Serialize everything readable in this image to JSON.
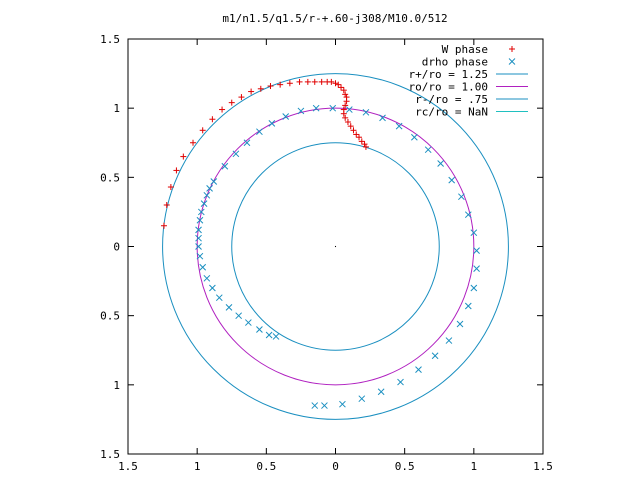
{
  "chart_data": {
    "type": "scatter",
    "title": "m1/n1.5/q1.5/r-+.60-j308/M10.0/512",
    "xlabel": "",
    "ylabel": "",
    "xlim": [
      -1.5,
      1.5
    ],
    "ylim": [
      -1.5,
      1.5
    ],
    "grid": false,
    "legend_position": "top-right",
    "x_ticks": [
      -1.5,
      -1,
      -0.5,
      0,
      0.5,
      1,
      1.5
    ],
    "x_tick_labels": [
      "1.5",
      "1",
      "0.5",
      "0",
      "0.5",
      "1",
      "1.5"
    ],
    "y_ticks": [
      1.5,
      1,
      0.5,
      0,
      -0.5,
      -1,
      -1.5
    ],
    "y_tick_labels": [
      "1.5",
      "1",
      "0.5",
      "0",
      "0.5",
      "1",
      "1.5"
    ],
    "circles": [
      {
        "name": "r+/ro = 1.25",
        "radius": 1.25,
        "color": "#1a8fc0"
      },
      {
        "name": "ro/ro = 1.00",
        "radius": 1.0,
        "color": "#b020c0"
      },
      {
        "name": "r-/ro = .75",
        "radius": 0.75,
        "color": "#1a8fc0"
      },
      {
        "name": "rc/ro = NaN",
        "radius": null,
        "color": "#20c0c0"
      }
    ],
    "series": [
      {
        "name": "W phase",
        "marker": "+",
        "color": "#e00000",
        "points": [
          [
            -1.24,
            0.15
          ],
          [
            -1.22,
            0.3
          ],
          [
            -1.19,
            0.43
          ],
          [
            -1.15,
            0.55
          ],
          [
            -1.1,
            0.65
          ],
          [
            -1.03,
            0.75
          ],
          [
            -0.96,
            0.84
          ],
          [
            -0.89,
            0.92
          ],
          [
            -0.82,
            0.99
          ],
          [
            -0.75,
            1.04
          ],
          [
            -0.68,
            1.08
          ],
          [
            -0.61,
            1.12
          ],
          [
            -0.54,
            1.14
          ],
          [
            -0.47,
            1.16
          ],
          [
            -0.4,
            1.17
          ],
          [
            -0.33,
            1.18
          ],
          [
            -0.26,
            1.19
          ],
          [
            -0.2,
            1.19
          ],
          [
            -0.15,
            1.19
          ],
          [
            -0.1,
            1.19
          ],
          [
            -0.06,
            1.19
          ],
          [
            -0.03,
            1.19
          ],
          [
            0.0,
            1.18
          ],
          [
            0.02,
            1.17
          ],
          [
            0.04,
            1.15
          ],
          [
            0.06,
            1.13
          ],
          [
            0.07,
            1.1
          ],
          [
            0.08,
            1.08
          ],
          [
            0.08,
            1.05
          ],
          [
            0.07,
            1.02
          ],
          [
            0.06,
            0.99
          ],
          [
            0.06,
            0.96
          ],
          [
            0.07,
            0.93
          ],
          [
            0.09,
            0.9
          ],
          [
            0.11,
            0.87
          ],
          [
            0.13,
            0.84
          ],
          [
            0.15,
            0.81
          ],
          [
            0.17,
            0.79
          ],
          [
            0.19,
            0.76
          ],
          [
            0.21,
            0.74
          ],
          [
            0.22,
            0.72
          ]
        ]
      },
      {
        "name": "drho phase",
        "marker": "x",
        "color": "#1a8fc0",
        "points": [
          [
            -0.88,
            0.47
          ],
          [
            -0.91,
            0.42
          ],
          [
            -0.93,
            0.37
          ],
          [
            -0.95,
            0.31
          ],
          [
            -0.97,
            0.25
          ],
          [
            -0.98,
            0.19
          ],
          [
            -0.99,
            0.12
          ],
          [
            -0.99,
            0.06
          ],
          [
            -0.99,
            0.0
          ],
          [
            -0.98,
            -0.07
          ],
          [
            -0.96,
            -0.15
          ],
          [
            -0.93,
            -0.23
          ],
          [
            -0.89,
            -0.3
          ],
          [
            -0.84,
            -0.37
          ],
          [
            -0.77,
            -0.44
          ],
          [
            -0.7,
            -0.5
          ],
          [
            -0.63,
            -0.55
          ],
          [
            -0.55,
            -0.6
          ],
          [
            -0.48,
            -0.64
          ],
          [
            -0.43,
            -0.65
          ],
          [
            -0.8,
            0.58
          ],
          [
            -0.72,
            0.67
          ],
          [
            -0.64,
            0.75
          ],
          [
            -0.55,
            0.83
          ],
          [
            -0.46,
            0.89
          ],
          [
            -0.36,
            0.94
          ],
          [
            -0.25,
            0.98
          ],
          [
            -0.14,
            1.0
          ],
          [
            -0.02,
            1.0
          ],
          [
            0.1,
            0.99
          ],
          [
            0.22,
            0.97
          ],
          [
            0.34,
            0.93
          ],
          [
            0.46,
            0.87
          ],
          [
            0.57,
            0.79
          ],
          [
            0.67,
            0.7
          ],
          [
            0.76,
            0.6
          ],
          [
            0.84,
            0.48
          ],
          [
            0.91,
            0.36
          ],
          [
            0.96,
            0.23
          ],
          [
            1.0,
            0.1
          ],
          [
            1.02,
            -0.03
          ],
          [
            1.02,
            -0.16
          ],
          [
            1.0,
            -0.3
          ],
          [
            0.96,
            -0.43
          ],
          [
            0.9,
            -0.56
          ],
          [
            0.82,
            -0.68
          ],
          [
            0.72,
            -0.79
          ],
          [
            0.6,
            -0.89
          ],
          [
            0.47,
            -0.98
          ],
          [
            0.33,
            -1.05
          ],
          [
            0.19,
            -1.1
          ],
          [
            0.05,
            -1.14
          ],
          [
            -0.08,
            -1.15
          ],
          [
            -0.15,
            -1.15
          ]
        ]
      }
    ]
  }
}
